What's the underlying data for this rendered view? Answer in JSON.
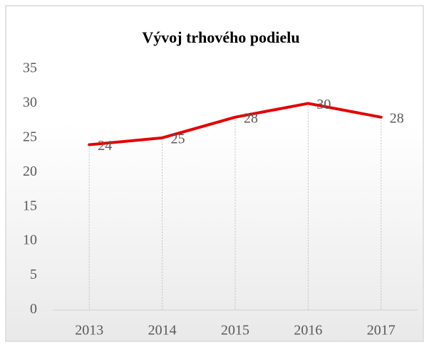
{
  "chart_data": {
    "type": "line",
    "title": "Vývoj trhového podielu",
    "categories": [
      "2013",
      "2014",
      "2015",
      "2016",
      "2017"
    ],
    "values": [
      24,
      25,
      28,
      30,
      28
    ],
    "color": "#e60000",
    "ylim": [
      0,
      35
    ],
    "yticks": [
      0,
      5,
      10,
      15,
      20,
      25,
      30,
      35
    ],
    "grid": false,
    "drop_lines": true,
    "data_labels": true
  }
}
